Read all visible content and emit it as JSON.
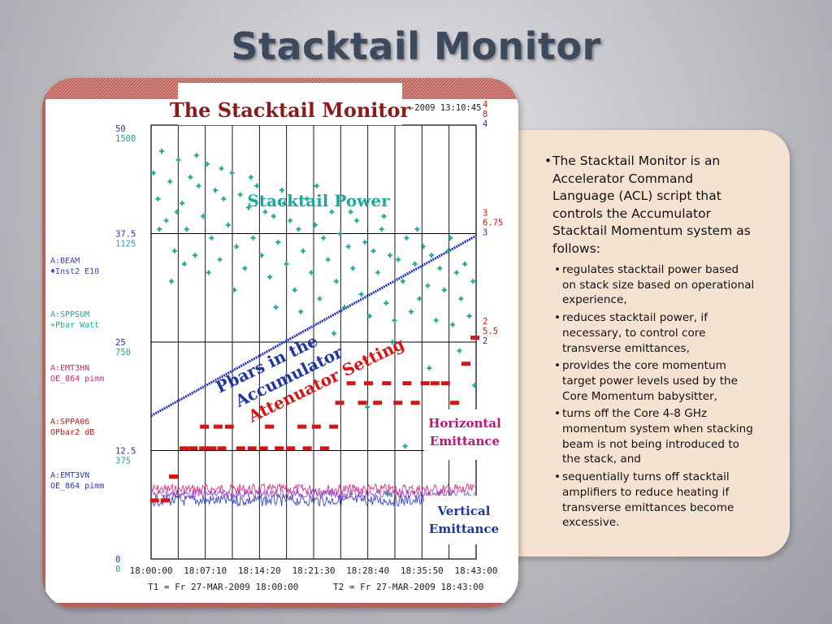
{
  "slide": {
    "title": "Stacktail Monitor"
  },
  "text": {
    "main_bullet": "The Stacktail Monitor is an Accelerator Command Language (ACL) script that controls the Accumulator Stacktail Momentum system as follows:",
    "sub_bullets": [
      "regulates stacktail power based on stack size based on operational experience,",
      "reduces stacktail power, if necessary, to control core transverse emittances,",
      "provides the core momentum target power levels used by the Core Momentum babysitter,",
      "turns off the Core 4-8 GHz momentum system when stacking beam is not being introduced to the stack, and",
      "sequentially turns off stacktail amplifiers to reduce heating if transverse emittances become excessive."
    ]
  },
  "chart_data": {
    "type": "scatter",
    "title": "The Stacktail Monitor",
    "timestamp": "-2009 13:10:45",
    "time_ticks": [
      "18:00:00",
      "18:07:10",
      "18:14:20",
      "18:21:30",
      "18:28:40",
      "18:35:50",
      "18:43:00"
    ],
    "footer_t1": "T1 = Fr 27-MAR-2009 18:00:00",
    "footer_t2": "T2 = Fr 27-MAR-2009 18:43:00",
    "left_axis": [
      {
        "a": "50",
        "b": "1500",
        "frac": 1.0
      },
      {
        "a": "37.5",
        "b": "1125",
        "frac": 0.75
      },
      {
        "a": "25",
        "b": "750",
        "frac": 0.5
      },
      {
        "a": "12.5",
        "b": "375",
        "frac": 0.25
      },
      {
        "a": "0",
        "b": "0",
        "frac": 0.0
      }
    ],
    "right_axis": [
      {
        "lines": [
          "4",
          "8",
          "4"
        ],
        "frac": 1.0
      },
      {
        "lines": [
          "3",
          "6.75",
          "3"
        ],
        "frac": 0.75
      },
      {
        "lines": [
          "2",
          "5.5",
          "2"
        ],
        "frac": 0.5
      }
    ],
    "legend": [
      {
        "line1": "A:BEAM",
        "line2": "♦Inst2  E10",
        "color": "#3344cc"
      },
      {
        "line1": "A:SPPSUM",
        "line2": "+Pbar  Watt",
        "color": "#1aa99a"
      },
      {
        "line1": "A:EMT3HN",
        "line2": "OE_864  pimm",
        "color": "#e0207a"
      },
      {
        "line1": "A:SPPA06",
        "line2": "OPbar2  dB",
        "color": "#dd1111"
      },
      {
        "line1": "A:EMT3VN",
        "line2": "OE_864  pimm",
        "color": "#2233cc"
      }
    ],
    "annotations": {
      "power": "Stacktail Power",
      "pbars_1": "Pbars in the",
      "pbars_2": "Accumulator",
      "atten": "Attenuator Setting",
      "horiz_1": "Horizontal",
      "horiz_2": "Emittance",
      "vert_1": "Vertical",
      "vert_2": "Emittance"
    },
    "x_range": [
      0,
      43
    ],
    "y_range": [
      0,
      1
    ],
    "series": [
      {
        "name": "A:BEAM",
        "color": "#2030d0",
        "points": [
          [
            0,
            0.33
          ],
          [
            43,
            0.745
          ]
        ]
      },
      {
        "name": "A:SPPSUM",
        "color": "#1aa99a",
        "points": [
          [
            0.3,
            0.89
          ],
          [
            0.9,
            0.83
          ],
          [
            1.4,
            0.94
          ],
          [
            2.0,
            0.78
          ],
          [
            2.5,
            0.87
          ],
          [
            3.1,
            0.71
          ],
          [
            3.6,
            0.92
          ],
          [
            4.1,
            0.82
          ],
          [
            4.7,
            0.76
          ],
          [
            5.2,
            0.88
          ],
          [
            5.8,
            0.7
          ],
          [
            6.3,
            0.86
          ],
          [
            6.9,
            0.79
          ],
          [
            7.4,
            0.91
          ],
          [
            8.0,
            0.74
          ],
          [
            8.5,
            0.85
          ],
          [
            9.1,
            0.69
          ],
          [
            9.6,
            0.83
          ],
          [
            10.2,
            0.77
          ],
          [
            10.7,
            0.89
          ],
          [
            11.3,
            0.72
          ],
          [
            11.8,
            0.84
          ],
          [
            12.4,
            0.67
          ],
          [
            12.9,
            0.81
          ],
          [
            13.5,
            0.74
          ],
          [
            14.0,
            0.86
          ],
          [
            14.6,
            0.7
          ],
          [
            15.1,
            0.8
          ],
          [
            15.7,
            0.65
          ],
          [
            16.2,
            0.79
          ],
          [
            16.8,
            0.73
          ],
          [
            17.3,
            0.85
          ],
          [
            17.9,
            0.68
          ],
          [
            18.4,
            0.78
          ],
          [
            19.0,
            0.62
          ],
          [
            19.5,
            0.76
          ],
          [
            20.1,
            0.71
          ],
          [
            20.6,
            0.83
          ],
          [
            21.2,
            0.66
          ],
          [
            21.7,
            0.77
          ],
          [
            22.3,
            0.6
          ],
          [
            22.8,
            0.74
          ],
          [
            23.4,
            0.69
          ],
          [
            23.9,
            0.8
          ],
          [
            24.5,
            0.64
          ],
          [
            25.0,
            0.75
          ],
          [
            25.6,
            0.58
          ],
          [
            26.1,
            0.72
          ],
          [
            26.7,
            0.67
          ],
          [
            27.2,
            0.78
          ],
          [
            27.8,
            0.61
          ],
          [
            28.3,
            0.73
          ],
          [
            28.9,
            0.56
          ],
          [
            29.4,
            0.71
          ],
          [
            30.0,
            0.66
          ],
          [
            30.5,
            0.76
          ],
          [
            31.1,
            0.59
          ],
          [
            31.6,
            0.7
          ],
          [
            32.2,
            0.55
          ],
          [
            32.7,
            0.69
          ],
          [
            33.3,
            0.64
          ],
          [
            33.8,
            0.74
          ],
          [
            34.4,
            0.57
          ],
          [
            34.9,
            0.68
          ],
          [
            35.5,
            0.6
          ],
          [
            36.0,
            0.72
          ],
          [
            36.6,
            0.63
          ],
          [
            37.1,
            0.7
          ],
          [
            37.7,
            0.55
          ],
          [
            38.2,
            0.67
          ],
          [
            38.8,
            0.62
          ],
          [
            39.3,
            0.71
          ],
          [
            39.9,
            0.54
          ],
          [
            40.4,
            0.66
          ],
          [
            41.0,
            0.6
          ],
          [
            41.5,
            0.68
          ],
          [
            42.1,
            0.56
          ],
          [
            42.6,
            0.64
          ],
          [
            1.1,
            0.76
          ],
          [
            3.4,
            0.8
          ],
          [
            6.0,
            0.93
          ],
          [
            9.3,
            0.9
          ],
          [
            13.2,
            0.88
          ],
          [
            17.6,
            0.82
          ],
          [
            21.9,
            0.86
          ],
          [
            26.4,
            0.8
          ],
          [
            30.8,
            0.79
          ],
          [
            35.2,
            0.76
          ],
          [
            39.6,
            0.74
          ],
          [
            2.7,
            0.64
          ],
          [
            7.6,
            0.66
          ],
          [
            16.5,
            0.58
          ],
          [
            24.2,
            0.52
          ],
          [
            31.9,
            0.5
          ],
          [
            36.8,
            0.44
          ],
          [
            28.6,
            0.35
          ],
          [
            33.6,
            0.26
          ],
          [
            40.8,
            0.48
          ],
          [
            42.8,
            0.4
          ],
          [
            31.3,
            0.15
          ],
          [
            19.8,
            0.57
          ],
          [
            11.0,
            0.62
          ],
          [
            4.4,
            0.68
          ]
        ]
      },
      {
        "name": "A:SPPA06",
        "color": "#dd1111",
        "points": [
          [
            0.4,
            0.135
          ],
          [
            1.8,
            0.135
          ],
          [
            2.9,
            0.19
          ],
          [
            4.3,
            0.255
          ],
          [
            5.5,
            0.255
          ],
          [
            6.9,
            0.255
          ],
          [
            8.0,
            0.255
          ],
          [
            9.3,
            0.255
          ],
          [
            7.0,
            0.305
          ],
          [
            8.8,
            0.305
          ],
          [
            10.3,
            0.305
          ],
          [
            11.8,
            0.255
          ],
          [
            13.3,
            0.255
          ],
          [
            14.8,
            0.255
          ],
          [
            15.6,
            0.305
          ],
          [
            16.9,
            0.255
          ],
          [
            18.4,
            0.255
          ],
          [
            19.9,
            0.305
          ],
          [
            20.6,
            0.255
          ],
          [
            21.8,
            0.305
          ],
          [
            22.9,
            0.255
          ],
          [
            24.1,
            0.305
          ],
          [
            24.9,
            0.36
          ],
          [
            26.4,
            0.405
          ],
          [
            27.9,
            0.36
          ],
          [
            28.7,
            0.405
          ],
          [
            29.9,
            0.36
          ],
          [
            31.1,
            0.405
          ],
          [
            32.6,
            0.36
          ],
          [
            33.8,
            0.405
          ],
          [
            34.9,
            0.36
          ],
          [
            36.2,
            0.405
          ],
          [
            37.5,
            0.405
          ],
          [
            38.9,
            0.405
          ],
          [
            40.1,
            0.36
          ],
          [
            41.6,
            0.45
          ],
          [
            42.8,
            0.51
          ]
        ]
      }
    ]
  }
}
